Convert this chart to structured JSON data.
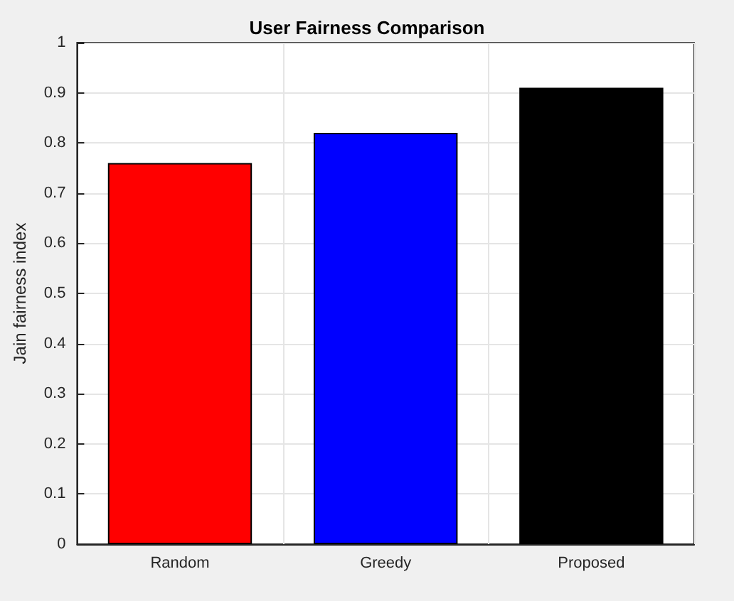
{
  "chart_data": {
    "type": "bar",
    "title": "User Fairness Comparison",
    "ylabel": "Jain fairness index",
    "categories": [
      "Random",
      "Greedy",
      "Proposed"
    ],
    "values": [
      0.76,
      0.82,
      0.91
    ],
    "colors": [
      "#ff0000",
      "#0000ff",
      "#000000"
    ],
    "ylim": [
      0,
      1
    ],
    "yticks": [
      0,
      0.1,
      0.2,
      0.3,
      0.4,
      0.5,
      0.6,
      0.7,
      0.8,
      0.9,
      1
    ],
    "grid": true
  }
}
